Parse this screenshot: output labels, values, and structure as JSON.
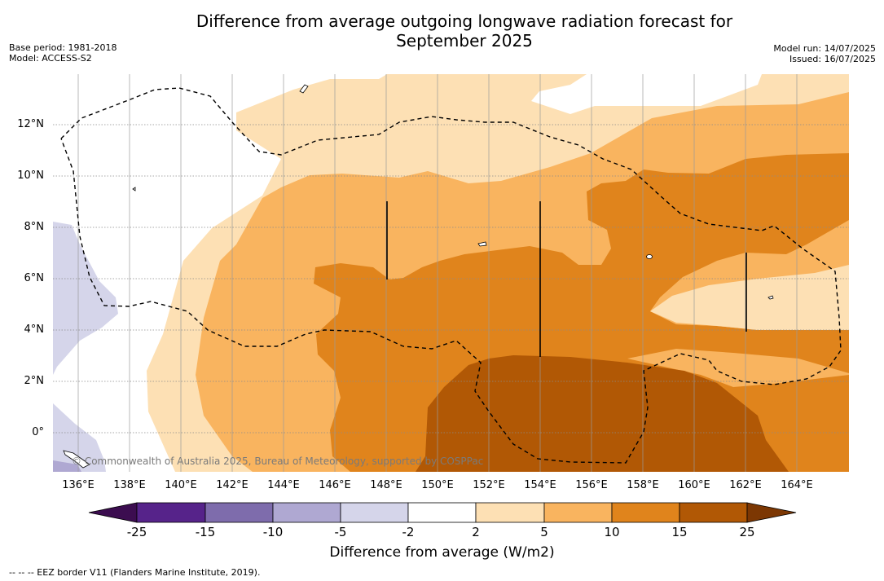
{
  "title_line1": "Difference from average outgoing longwave radiation forecast for",
  "title_line2": "September 2025",
  "meta_left": {
    "base_period": "Base period: 1981-2018",
    "model": "Model: ACCESS-S2"
  },
  "meta_right": {
    "model_run": "Model run: 14/07/2025",
    "issued": "Issued: 16/07/2025"
  },
  "map": {
    "lon_labels": [
      "136°E",
      "138°E",
      "140°E",
      "142°E",
      "144°E",
      "146°E",
      "148°E",
      "150°E",
      "152°E",
      "154°E",
      "156°E",
      "158°E",
      "160°E",
      "162°E",
      "164°E"
    ],
    "lat_labels": [
      "12°N",
      "10°N",
      "8°N",
      "6°N",
      "4°N",
      "2°N",
      "0°"
    ],
    "copyright": "© Commonwealth of Australia 2025, Bureau of Meteorology, supported by COSPPac"
  },
  "colorbar": {
    "title": "Difference from average (W/m2)",
    "ticks": [
      "-25",
      "-15",
      "-10",
      "-5",
      "-2",
      "2",
      "5",
      "10",
      "15",
      "25"
    ],
    "colors": [
      "#3c0d50",
      "#56238a",
      "#7e6cac",
      "#afa8d2",
      "#d5d5ea",
      "#ffffff",
      "#fde0b4",
      "#f9b45f",
      "#e0841c",
      "#b15805",
      "#7c3703"
    ]
  },
  "footnote": "--  --  -- EEZ border V11 (Flanders Marine Institute, 2019)."
}
